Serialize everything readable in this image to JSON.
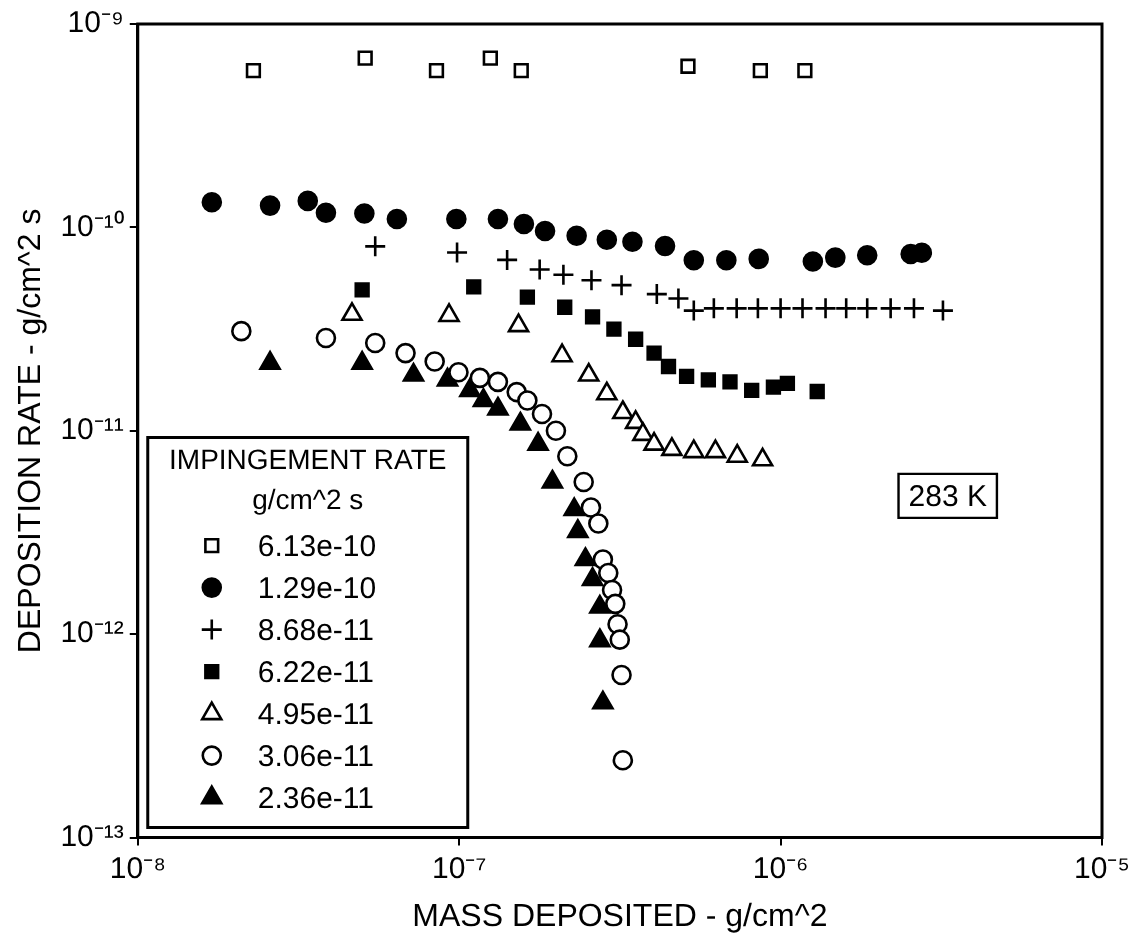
{
  "chart_data": {
    "type": "scatter",
    "xlabel": "MASS DEPOSITED - g/cm^2",
    "ylabel": "DEPOSITION RATE - g/cm^2 s",
    "legend_title": "IMPINGEMENT RATE\ng/cm^2 s",
    "legend": "bottom left",
    "log": "xy",
    "grid": false,
    "annotations": [
      "283 K"
    ],
    "xlim": [
      1e-08,
      1e-05
    ],
    "ylim": [
      1e-13,
      1e-09
    ],
    "xticks": [
      {
        "value": 1e-08,
        "label": "10⁻⁸"
      },
      {
        "value": 1e-07,
        "label": "10⁻⁷"
      },
      {
        "value": 1e-06,
        "label": "10⁻⁶"
      },
      {
        "value": 1e-05,
        "label": "10⁻⁵"
      }
    ],
    "yticks": [
      {
        "value": 1e-13,
        "label": "10⁻¹³"
      },
      {
        "value": 1e-12,
        "label": "10⁻¹²"
      },
      {
        "value": 1e-11,
        "label": "10⁻¹¹"
      },
      {
        "value": 1e-10,
        "label": "10⁻¹⁰"
      },
      {
        "value": 1e-09,
        "label": "10⁻⁹"
      }
    ],
    "series": [
      {
        "name": "6.13e-10",
        "color": "#000000",
        "marker": "square-open",
        "x": [
          2.29e-08,
          5.1e-08,
          8.5e-08,
          1.25e-07,
          1.56e-07,
          5.15e-07,
          8.65e-07,
          1.19e-06
        ],
        "values": [
          5.9e-10,
          6.8e-10,
          5.9e-10,
          6.8e-10,
          5.9e-10,
          6.2e-10,
          5.9e-10,
          5.9e-10
        ]
      },
      {
        "name": "1.29e-10",
        "color": "#000000",
        "marker": "circle",
        "x": [
          1.7e-08,
          2.58e-08,
          3.38e-08,
          3.85e-08,
          5.07e-08,
          6.4e-08,
          9.8e-08,
          1.32e-07,
          1.59e-07,
          1.85e-07,
          2.32e-07,
          2.88e-07,
          3.46e-07,
          4.37e-07,
          5.37e-07,
          6.78e-07,
          8.55e-07,
          1.26e-06,
          1.48e-06,
          1.86e-06,
          2.54e-06,
          2.75e-06
        ],
        "values": [
          1.33e-10,
          1.28e-10,
          1.35e-10,
          1.18e-10,
          1.17e-10,
          1.1e-10,
          1.1e-10,
          1.1e-10,
          1.04e-10,
          9.6e-11,
          9.1e-11,
          8.7e-11,
          8.5e-11,
          8.1e-11,
          6.9e-11,
          6.9e-11,
          7e-11,
          6.8e-11,
          7.1e-11,
          7.3e-11,
          7.4e-11,
          7.5e-11
        ]
      },
      {
        "name": "8.68e-11",
        "color": "#000000",
        "marker": "cross",
        "x": [
          5.48e-08,
          9.85e-08,
          1.41e-07,
          1.78e-07,
          2.11e-07,
          2.58e-07,
          3.2e-07,
          4.12e-07,
          4.81e-07,
          5.37e-07,
          6.2e-07,
          7.3e-07,
          8.5e-07,
          1e-06,
          1.17e-06,
          1.38e-06,
          1.6e-06,
          1.86e-06,
          2.2e-06,
          2.6e-06,
          3.2e-06
        ],
        "values": [
          8.07e-11,
          7.53e-11,
          6.92e-11,
          6.21e-11,
          5.85e-11,
          5.5e-11,
          5.2e-11,
          4.7e-11,
          4.47e-11,
          3.9e-11,
          4e-11,
          4e-11,
          4e-11,
          4e-11,
          4e-11,
          4e-11,
          4e-11,
          4e-11,
          4e-11,
          4e-11,
          3.9e-11
        ]
      },
      {
        "name": "6.22e-11",
        "color": "#000000",
        "marker": "square",
        "x": [
          4.99e-08,
          1.11e-07,
          1.63e-07,
          2.13e-07,
          2.6e-07,
          3.03e-07,
          3.54e-07,
          4.04e-07,
          4.48e-07,
          5.1e-07,
          5.96e-07,
          6.96e-07,
          8.13e-07,
          9.5e-07,
          1.05e-06,
          1.3e-06
        ],
        "values": [
          4.93e-11,
          5.1e-11,
          4.54e-11,
          4.05e-11,
          3.63e-11,
          3.16e-11,
          2.82e-11,
          2.41e-11,
          2.07e-11,
          1.85e-11,
          1.78e-11,
          1.74e-11,
          1.58e-11,
          1.64e-11,
          1.71e-11,
          1.56e-11
        ]
      },
      {
        "name": "4.95e-11",
        "color": "#000000",
        "marker": "triangle-open",
        "x": [
          4.64e-08,
          9.3e-08,
          1.53e-07,
          2.09e-07,
          2.53e-07,
          2.88e-07,
          3.23e-07,
          3.54e-07,
          3.73e-07,
          4.04e-07,
          4.59e-07,
          5.37e-07,
          6.27e-07,
          7.33e-07,
          8.79e-07
        ],
        "values": [
          3.74e-11,
          3.69e-11,
          3.29e-11,
          2.34e-11,
          1.88e-11,
          1.52e-11,
          1.23e-11,
          1.1e-11,
          9.6e-12,
          8.6e-12,
          8.1e-12,
          7.9e-12,
          7.9e-12,
          7.5e-12,
          7.2e-12
        ]
      },
      {
        "name": "3.06e-11",
        "color": "#000000",
        "marker": "circle-open",
        "x": [
          2.1e-08,
          3.85e-08,
          5.48e-08,
          6.81e-08,
          8.39e-08,
          9.95e-08,
          1.16e-07,
          1.32e-07,
          1.51e-07,
          1.63e-07,
          1.81e-07,
          2e-07,
          2.17e-07,
          2.44e-07,
          2.57e-07,
          2.71e-07,
          2.8e-07,
          2.91e-07,
          2.99e-07,
          3.06e-07,
          3.11e-07,
          3.16e-07,
          3.2e-07,
          3.23e-07
        ],
        "values": [
          3.09e-11,
          2.86e-11,
          2.7e-11,
          2.41e-11,
          2.19e-11,
          1.94e-11,
          1.82e-11,
          1.74e-11,
          1.55e-11,
          1.41e-11,
          1.21e-11,
          1e-11,
          7.5e-12,
          5.6e-12,
          4.2e-12,
          3.5e-12,
          2.33e-12,
          2e-12,
          1.65e-12,
          1.41e-12,
          1.12e-12,
          9.4e-13,
          6.3e-13,
          2.4e-13
        ]
      },
      {
        "name": "2.36e-11",
        "color": "#000000",
        "marker": "triangle",
        "x": [
          2.58e-08,
          4.99e-08,
          7.21e-08,
          9.2e-08,
          1.08e-07,
          1.19e-07,
          1.32e-07,
          1.55e-07,
          1.76e-07,
          1.95e-07,
          2.28e-07,
          2.34e-07,
          2.47e-07,
          2.6e-07,
          2.74e-07,
          2.74e-07,
          2.8e-07
        ],
        "values": [
          2.15e-11,
          2.15e-11,
          1.88e-11,
          1.78e-11,
          1.58e-11,
          1.41e-11,
          1.28e-11,
          1.08e-11,
          8.6e-12,
          5.6e-12,
          4.1e-12,
          3.2e-12,
          2.33e-12,
          1.86e-12,
          1.36e-12,
          9.3e-13,
          4.6e-13
        ]
      }
    ]
  }
}
